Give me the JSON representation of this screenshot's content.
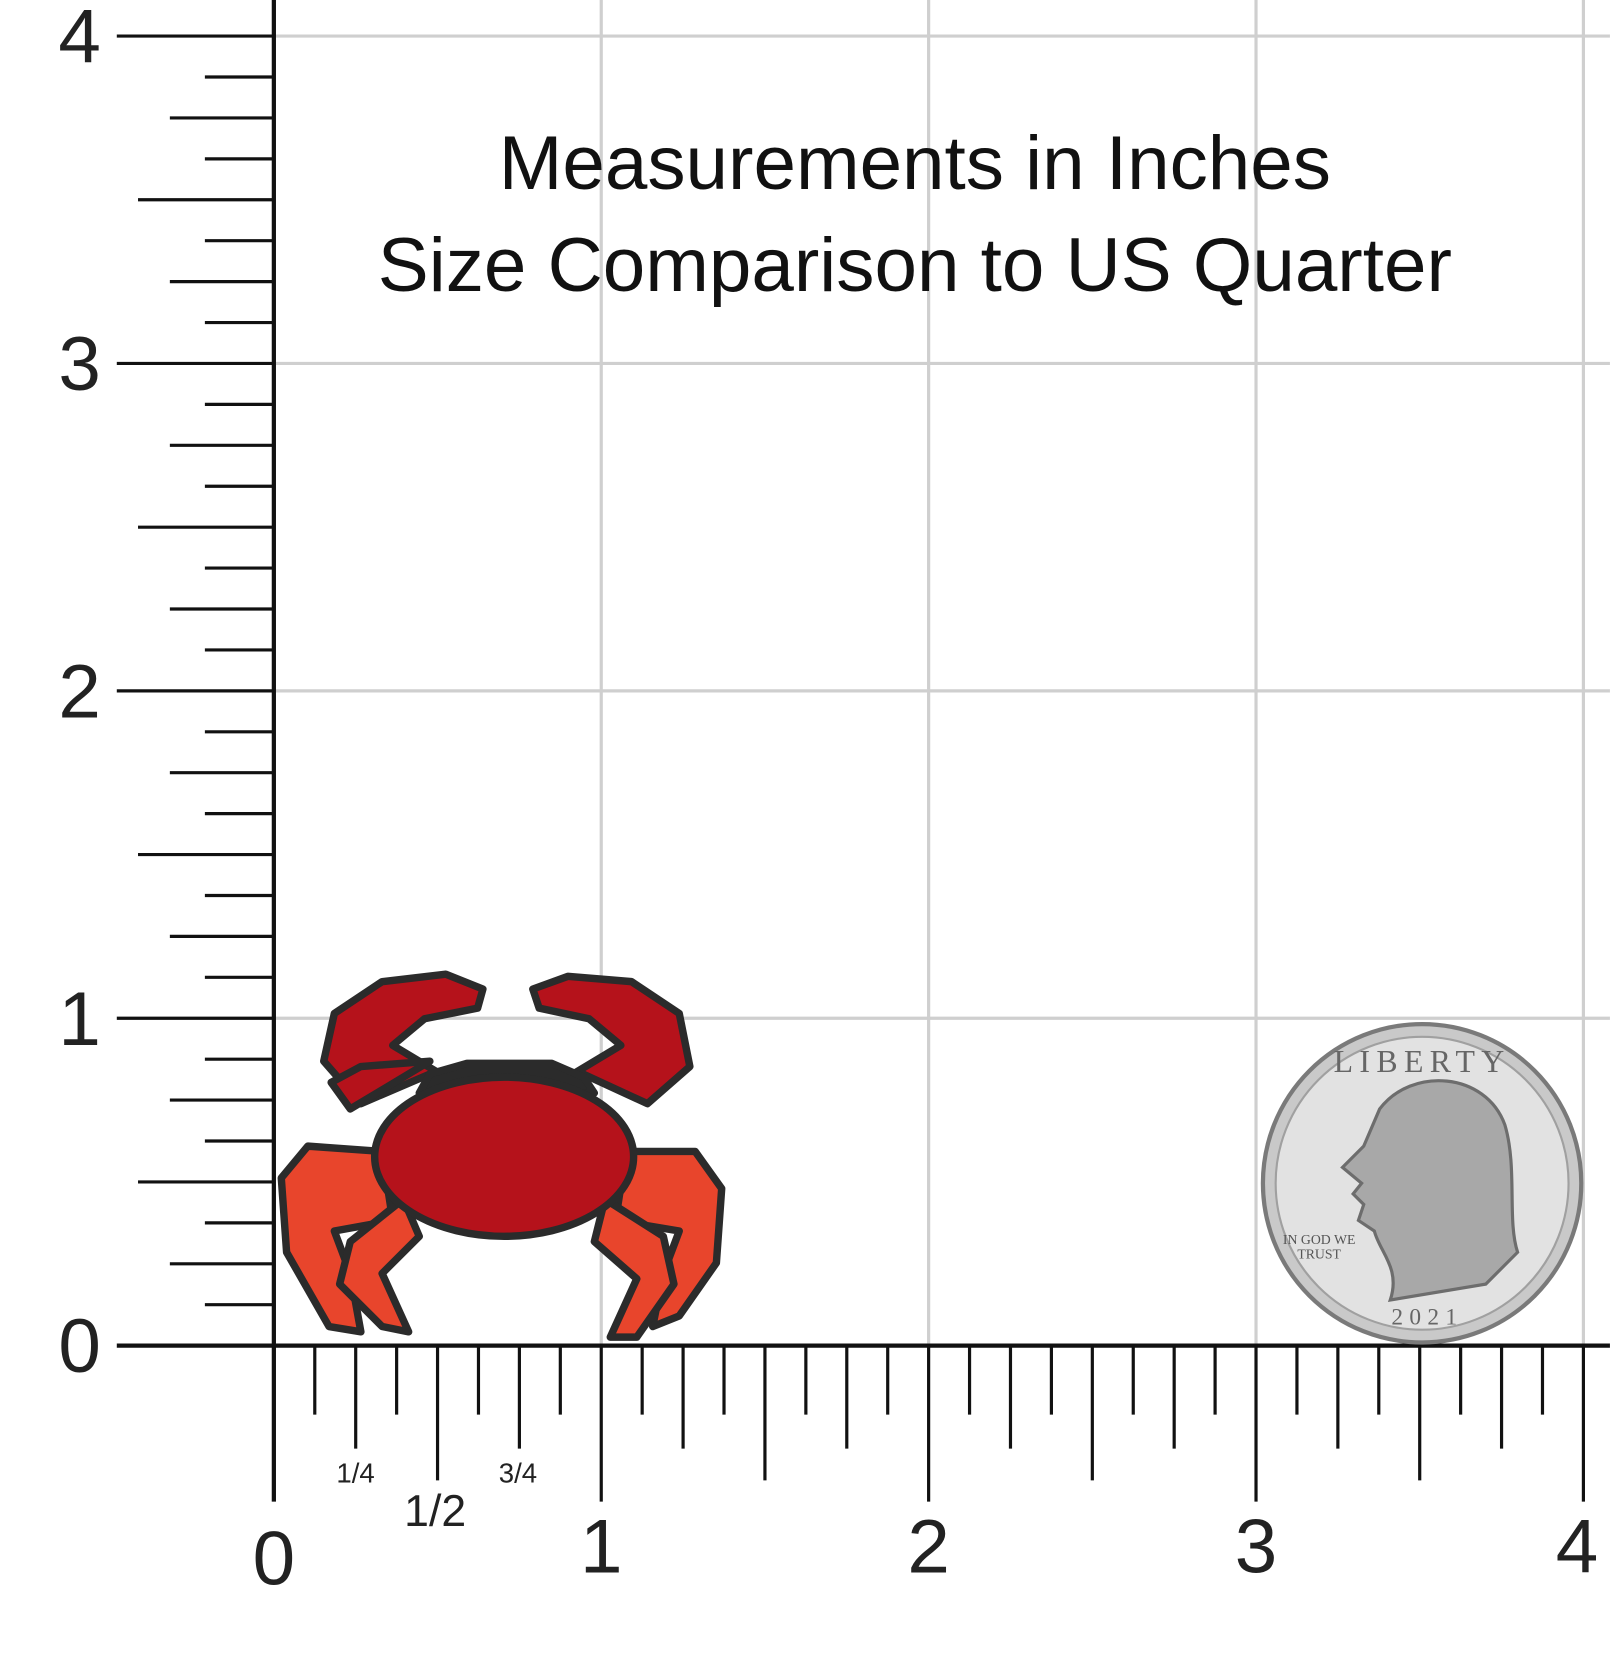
{
  "header": {
    "title_lines": [
      "Measurements in Inches",
      "Size Comparison to US Quarter"
    ]
  },
  "ruler": {
    "y_labels": [
      "0",
      "1",
      "2",
      "3",
      "4"
    ],
    "x_labels": [
      "0",
      "1",
      "2",
      "3",
      "4"
    ],
    "fractions": [
      "1/4",
      "1/2",
      "3/4"
    ]
  },
  "coin": {
    "motto_top": "LIBERTY",
    "motto_lines": [
      "IN GOD WE",
      "TRUST"
    ],
    "year": "2021"
  }
}
